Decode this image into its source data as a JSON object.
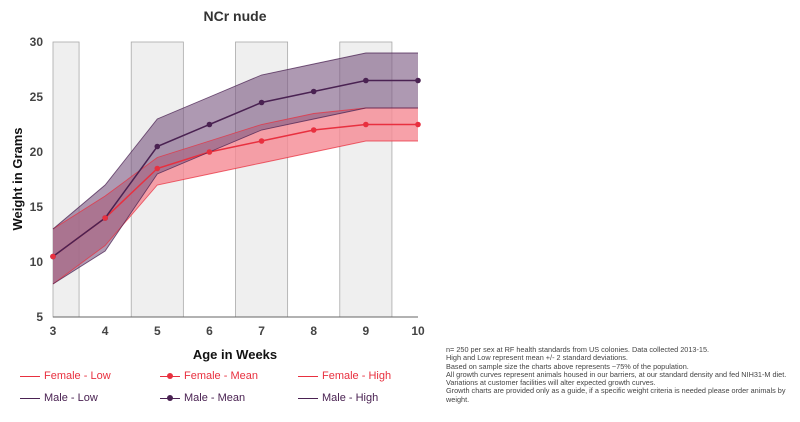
{
  "colors": {
    "female": "#e8303f",
    "female_band": "#f58a94",
    "male": "#4a2252",
    "male_band": "#7c5a83",
    "shade": "#efefef",
    "shade_line": "#a9a9a9"
  },
  "chart_data": {
    "type": "line",
    "title": "NCr nude",
    "xlabel": "Age in Weeks",
    "ylabel": "Weight in Grams",
    "x": [
      3,
      4,
      5,
      6,
      7,
      8,
      9,
      10
    ],
    "xlim": [
      3,
      10
    ],
    "ylim": [
      5,
      30
    ],
    "yticks": [
      5,
      10,
      15,
      20,
      25,
      30
    ],
    "shaded_x_bands": [
      [
        3,
        3.5
      ],
      [
        4.5,
        5.5
      ],
      [
        6.5,
        7.5
      ],
      [
        8.5,
        9.5
      ]
    ],
    "series": [
      {
        "name": "Female - Low",
        "values": [
          8,
          11.5,
          17,
          18,
          19,
          20,
          21,
          21
        ]
      },
      {
        "name": "Female - Mean",
        "values": [
          10.5,
          14,
          18.5,
          20,
          21,
          22,
          22.5,
          22.5
        ]
      },
      {
        "name": "Female - High",
        "values": [
          13,
          16,
          19.5,
          21,
          22.5,
          23.5,
          24,
          24
        ]
      },
      {
        "name": "Male - Low",
        "values": [
          8,
          11,
          18,
          20,
          22,
          23,
          24,
          24
        ]
      },
      {
        "name": "Male - Mean",
        "values": [
          10.5,
          14,
          20.5,
          22.5,
          24.5,
          25.5,
          26.5,
          26.5
        ]
      },
      {
        "name": "Male - High",
        "values": [
          13,
          17,
          23,
          25,
          27,
          28,
          29,
          29
        ]
      }
    ]
  },
  "legend": {
    "items": [
      {
        "label": "Female - Low",
        "kind": "line",
        "color": "#e8303f"
      },
      {
        "label": "Female - Mean",
        "kind": "dot",
        "color": "#e8303f"
      },
      {
        "label": "Female - High",
        "kind": "line",
        "color": "#e8303f"
      },
      {
        "label": "Male - Low",
        "kind": "line",
        "color": "#4a2252"
      },
      {
        "label": "Male - Mean",
        "kind": "dot",
        "color": "#4a2252"
      },
      {
        "label": "Male - High",
        "kind": "line",
        "color": "#4a2252"
      }
    ]
  },
  "notes": [
    "n= 250 per sex at RF health standards from US colonies. Data collected 2013-15.",
    "High and Low represent mean +/- 2 standard deviations.",
    "Based on sample size the charts above represents ~75% of the population.",
    "All growth curves represent animals housed in our barriers, at our standard density and fed NIH31-M diet. Variations at customer facilities will alter expected growth curves.",
    "Growth charts are provided only as a guide, if a specific weight criteria is needed please order animals by weight."
  ]
}
